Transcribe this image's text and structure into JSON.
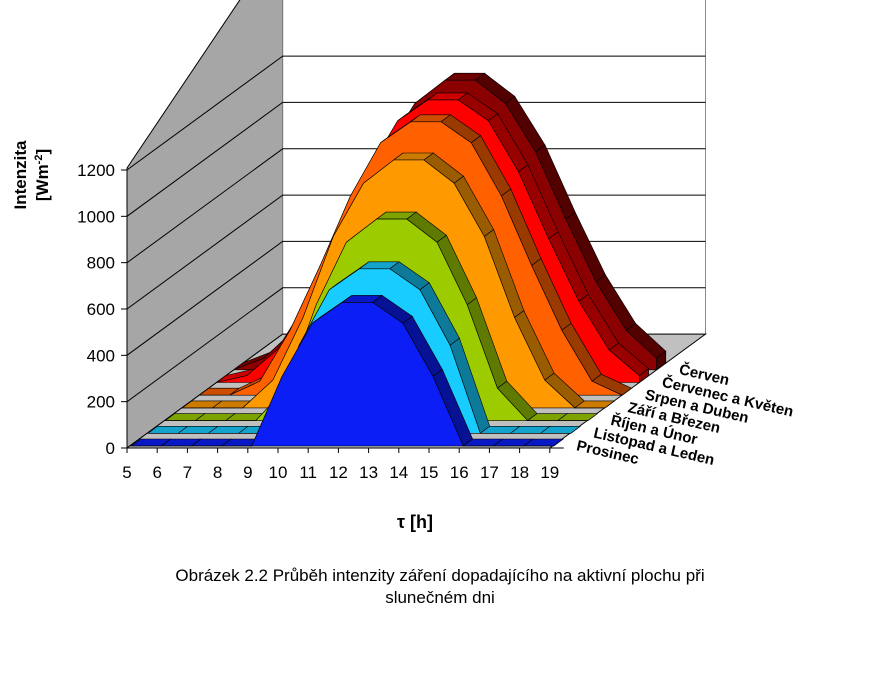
{
  "caption": {
    "line1": "Obrázek 2.2 Průběh intenzity záření dopadajícího na aktivní plochu při",
    "line2": "slunečném dni"
  },
  "chart_data": {
    "type": "area",
    "subtype": "3d-area",
    "title": "",
    "ylabel_line1": "Intenzita",
    "ylabel_line2_prefix": "[Wm",
    "ylabel_line2_sup": "-2",
    "ylabel_line2_suffix": "]",
    "xlabel": "τ [h]",
    "ylim": [
      0,
      1200
    ],
    "yticks": [
      0,
      200,
      400,
      600,
      800,
      1000,
      1200
    ],
    "x": [
      5,
      6,
      7,
      8,
      9,
      10,
      11,
      12,
      13,
      14,
      15,
      16,
      17,
      18,
      19
    ],
    "grid": true,
    "series": [
      {
        "name": "Prosinec",
        "color": "#0a1ef5",
        "values": [
          0,
          0,
          0,
          0,
          0,
          300,
          530,
          620,
          620,
          530,
          300,
          0,
          0,
          0,
          0
        ]
      },
      {
        "name": "Listopad a Leden",
        "color": "#18ccff",
        "values": [
          0,
          0,
          0,
          0,
          0,
          380,
          620,
          710,
          710,
          620,
          380,
          0,
          0,
          0,
          0
        ]
      },
      {
        "name": "Říjen a Únor",
        "color": "#9ccc00",
        "values": [
          0,
          0,
          0,
          0,
          140,
          500,
          770,
          870,
          870,
          770,
          500,
          140,
          0,
          0,
          0
        ]
      },
      {
        "name": "Září a Březen",
        "color": "#ff9900",
        "values": [
          0,
          0,
          0,
          120,
          390,
          740,
          970,
          1070,
          1070,
          970,
          740,
          390,
          120,
          0,
          0
        ]
      },
      {
        "name": "Srpen a Duben",
        "color": "#ff6000",
        "values": [
          0,
          0,
          60,
          280,
          560,
          860,
          1090,
          1180,
          1180,
          1090,
          860,
          560,
          280,
          60,
          0
        ]
      },
      {
        "name": "Červenec a Květen",
        "color": "#ff0000",
        "values": [
          0,
          30,
          140,
          350,
          620,
          910,
          1130,
          1220,
          1220,
          1130,
          910,
          620,
          350,
          140,
          30
        ]
      },
      {
        "name": "Červen",
        "color": "#8b0000",
        "values": [
          0,
          50,
          170,
          380,
          650,
          940,
          1150,
          1250,
          1250,
          1150,
          940,
          650,
          380,
          170,
          50
        ]
      }
    ]
  }
}
